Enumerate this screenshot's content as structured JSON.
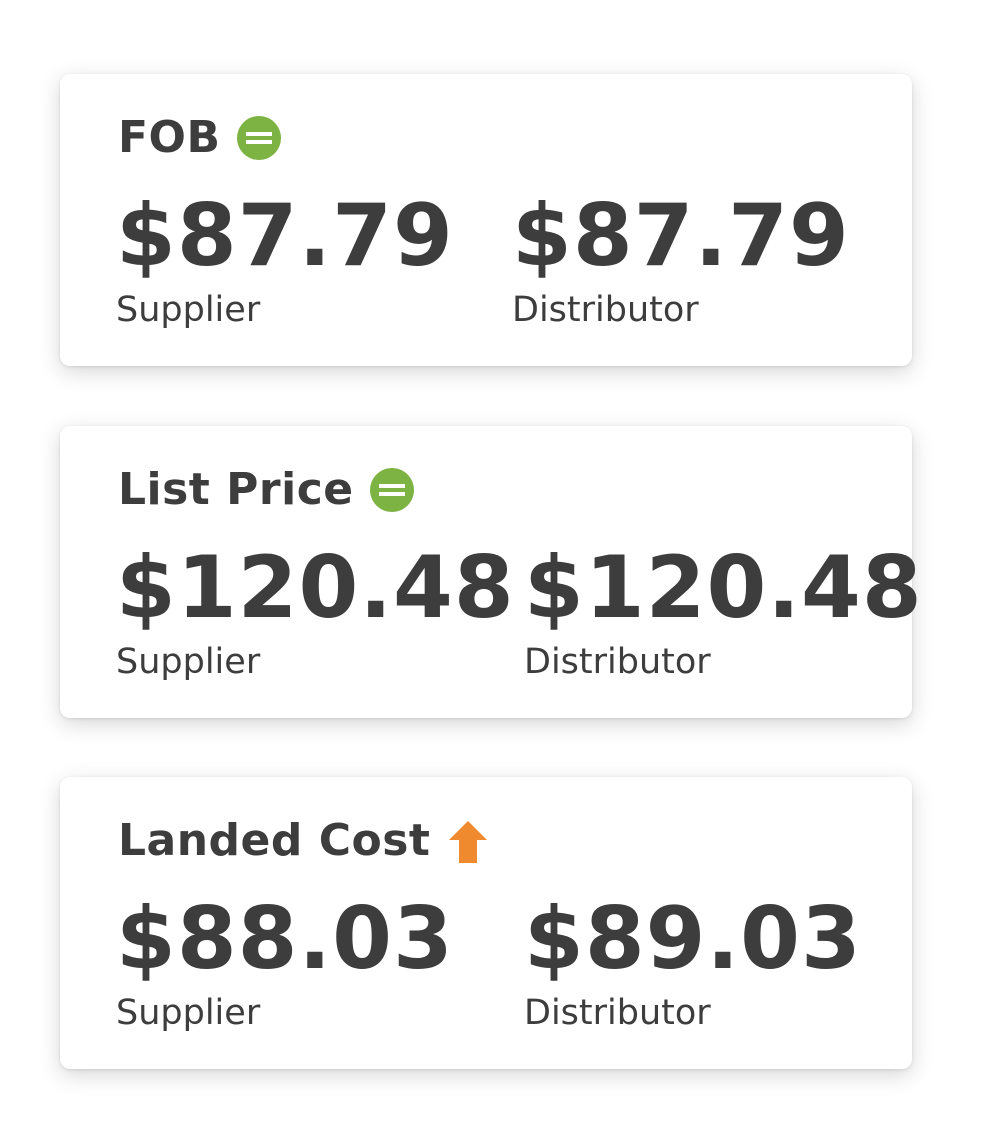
{
  "colors": {
    "equal": "#7cb342",
    "up": "#ef8a2e",
    "text": "#3d3d3d"
  },
  "cards": [
    {
      "title": "FOB",
      "icon": "equal-circle-icon",
      "supplier_value": "$87.79",
      "supplier_label": "Supplier",
      "distributor_value": "$87.79",
      "distributor_label": "Distributor"
    },
    {
      "title": "List Price",
      "icon": "equal-circle-icon",
      "supplier_value": "$120.48",
      "supplier_label": "Supplier",
      "distributor_value": "$120.48",
      "distributor_label": "Distributor"
    },
    {
      "title": "Landed Cost",
      "icon": "arrow-up-icon",
      "supplier_value": "$88.03",
      "supplier_label": "Supplier",
      "distributor_value": "$89.03",
      "distributor_label": "Distributor"
    }
  ]
}
